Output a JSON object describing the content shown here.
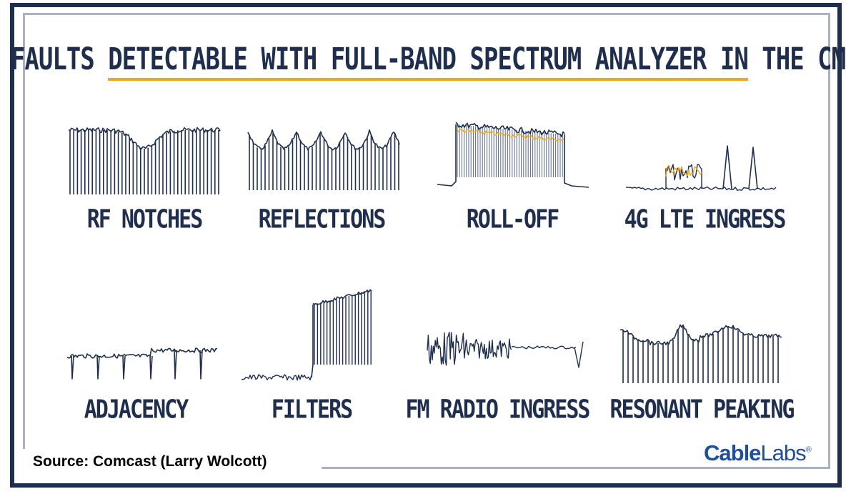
{
  "title": "FAULTS DETECTABLE WITH FULL-BAND SPECTRUM ANALYZER IN THE CM",
  "panels": [
    {
      "label": "RF NOTCHES",
      "icon": "rf-notches-spectrum"
    },
    {
      "label": "REFLECTIONS",
      "icon": "reflections-spectrum"
    },
    {
      "label": "ROLL-OFF",
      "icon": "roll-off-spectrum"
    },
    {
      "label": "4G LTE INGRESS",
      "icon": "lte-ingress-spectrum"
    },
    {
      "label": "ADJACENCY",
      "icon": "adjacency-spectrum"
    },
    {
      "label": "FILTERS",
      "icon": "filters-spectrum"
    },
    {
      "label": "FM RADIO INGRESS",
      "icon": "fm-radio-ingress-spectrum"
    },
    {
      "label": "RESONANT PEAKING",
      "icon": "resonant-peaking-spectrum"
    }
  ],
  "source": "Source: Comcast (Larry Wolcott)",
  "brand": {
    "part1": "Cable",
    "part2": "Labs",
    "reg": "®"
  },
  "colors": {
    "navy": "#1f2e4d",
    "accent": "#f0a71e",
    "brand": "#1d4f9c"
  }
}
